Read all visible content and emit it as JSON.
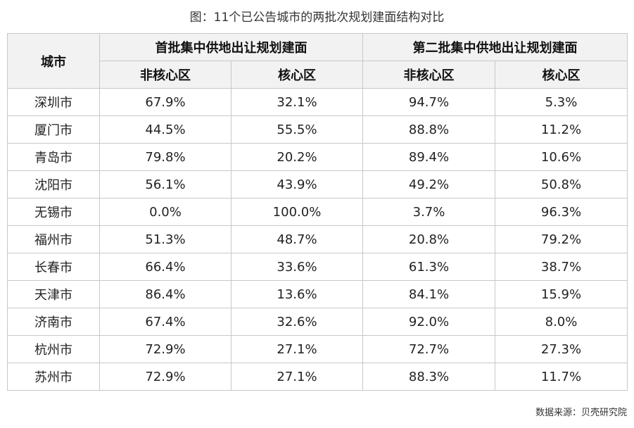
{
  "caption": "图：11个已公告城市的两批次规划建面结构对比",
  "table": {
    "city_header": "城市",
    "group1_header": "首批集中供地出让规划建面",
    "group2_header": "第二批集中供地出让规划建面",
    "sub_headers": [
      "非核心区",
      "核心区",
      "非核心区",
      "核心区"
    ],
    "rows": [
      {
        "city": "深圳市",
        "b1_noncore": "67.9%",
        "b1_core": "32.1%",
        "b2_noncore": "94.7%",
        "b2_core": "5.3%"
      },
      {
        "city": "厦门市",
        "b1_noncore": "44.5%",
        "b1_core": "55.5%",
        "b2_noncore": "88.8%",
        "b2_core": "11.2%"
      },
      {
        "city": "青岛市",
        "b1_noncore": "79.8%",
        "b1_core": "20.2%",
        "b2_noncore": "89.4%",
        "b2_core": "10.6%"
      },
      {
        "city": "沈阳市",
        "b1_noncore": "56.1%",
        "b1_core": "43.9%",
        "b2_noncore": "49.2%",
        "b2_core": "50.8%"
      },
      {
        "city": "无锡市",
        "b1_noncore": "0.0%",
        "b1_core": "100.0%",
        "b2_noncore": "3.7%",
        "b2_core": "96.3%"
      },
      {
        "city": "福州市",
        "b1_noncore": "51.3%",
        "b1_core": "48.7%",
        "b2_noncore": "20.8%",
        "b2_core": "79.2%"
      },
      {
        "city": "长春市",
        "b1_noncore": "66.4%",
        "b1_core": "33.6%",
        "b2_noncore": "61.3%",
        "b2_core": "38.7%"
      },
      {
        "city": "天津市",
        "b1_noncore": "86.4%",
        "b1_core": "13.6%",
        "b2_noncore": "84.1%",
        "b2_core": "15.9%"
      },
      {
        "city": "济南市",
        "b1_noncore": "67.4%",
        "b1_core": "32.6%",
        "b2_noncore": "92.0%",
        "b2_core": "8.0%"
      },
      {
        "city": "杭州市",
        "b1_noncore": "72.9%",
        "b1_core": "27.1%",
        "b2_noncore": "72.7%",
        "b2_core": "27.3%"
      },
      {
        "city": "苏州市",
        "b1_noncore": "72.9%",
        "b1_core": "27.1%",
        "b2_noncore": "88.3%",
        "b2_core": "11.7%"
      }
    ]
  },
  "source": "数据来源：贝壳研究院"
}
